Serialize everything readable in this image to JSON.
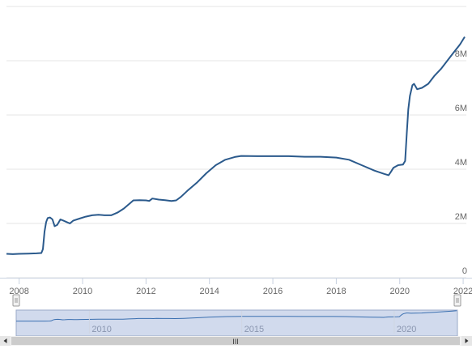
{
  "chart_data": {
    "type": "line",
    "x_unit": "year",
    "y_unit": "dollars",
    "series": [
      {
        "color": "#2b5a8c",
        "points": [
          [
            2007.6,
            0.88
          ],
          [
            2007.8,
            0.87
          ],
          [
            2008.0,
            0.88
          ],
          [
            2008.3,
            0.89
          ],
          [
            2008.55,
            0.9
          ],
          [
            2008.7,
            0.91
          ],
          [
            2008.75,
            1.05
          ],
          [
            2008.8,
            1.7
          ],
          [
            2008.85,
            2.05
          ],
          [
            2008.9,
            2.2
          ],
          [
            2008.97,
            2.22
          ],
          [
            2009.05,
            2.15
          ],
          [
            2009.12,
            1.9
          ],
          [
            2009.2,
            1.95
          ],
          [
            2009.3,
            2.15
          ],
          [
            2009.4,
            2.1
          ],
          [
            2009.5,
            2.05
          ],
          [
            2009.6,
            2.0
          ],
          [
            2009.7,
            2.1
          ],
          [
            2009.9,
            2.18
          ],
          [
            2010.1,
            2.25
          ],
          [
            2010.3,
            2.3
          ],
          [
            2010.5,
            2.32
          ],
          [
            2010.7,
            2.3
          ],
          [
            2010.9,
            2.3
          ],
          [
            2011.1,
            2.4
          ],
          [
            2011.3,
            2.55
          ],
          [
            2011.5,
            2.75
          ],
          [
            2011.6,
            2.85
          ],
          [
            2011.8,
            2.86
          ],
          [
            2012.0,
            2.85
          ],
          [
            2012.1,
            2.83
          ],
          [
            2012.2,
            2.92
          ],
          [
            2012.4,
            2.88
          ],
          [
            2012.6,
            2.86
          ],
          [
            2012.8,
            2.83
          ],
          [
            2012.95,
            2.85
          ],
          [
            2013.1,
            2.98
          ],
          [
            2013.3,
            3.2
          ],
          [
            2013.6,
            3.5
          ],
          [
            2013.9,
            3.85
          ],
          [
            2014.2,
            4.15
          ],
          [
            2014.5,
            4.35
          ],
          [
            2014.8,
            4.45
          ],
          [
            2015.0,
            4.49
          ],
          [
            2015.5,
            4.48
          ],
          [
            2016.0,
            4.48
          ],
          [
            2016.5,
            4.48
          ],
          [
            2017.0,
            4.46
          ],
          [
            2017.5,
            4.46
          ],
          [
            2018.0,
            4.43
          ],
          [
            2018.4,
            4.35
          ],
          [
            2018.8,
            4.15
          ],
          [
            2019.2,
            3.95
          ],
          [
            2019.5,
            3.83
          ],
          [
            2019.65,
            3.78
          ],
          [
            2019.72,
            3.9
          ],
          [
            2019.8,
            4.05
          ],
          [
            2019.95,
            4.15
          ],
          [
            2020.1,
            4.17
          ],
          [
            2020.17,
            4.3
          ],
          [
            2020.22,
            5.3
          ],
          [
            2020.27,
            6.2
          ],
          [
            2020.32,
            6.7
          ],
          [
            2020.4,
            7.1
          ],
          [
            2020.45,
            7.15
          ],
          [
            2020.55,
            6.95
          ],
          [
            2020.7,
            7.0
          ],
          [
            2020.9,
            7.15
          ],
          [
            2021.1,
            7.45
          ],
          [
            2021.3,
            7.7
          ],
          [
            2021.5,
            8.0
          ],
          [
            2021.7,
            8.3
          ],
          [
            2021.9,
            8.6
          ],
          [
            2022.05,
            8.88
          ]
        ]
      }
    ],
    "x_ticks": [
      "2008",
      "2010",
      "2012",
      "2014",
      "2016",
      "2018",
      "2020",
      "2022"
    ],
    "y_ticks": [
      "0",
      "2M",
      "4M",
      "6M",
      "8M"
    ],
    "xlim": [
      2007.6,
      2022.1
    ],
    "ylim": [
      0,
      10
    ],
    "grid": "horizontal",
    "navigator": {
      "labels": [
        "2010",
        "2015",
        "2020"
      ],
      "scroll_thumb": "III"
    }
  }
}
